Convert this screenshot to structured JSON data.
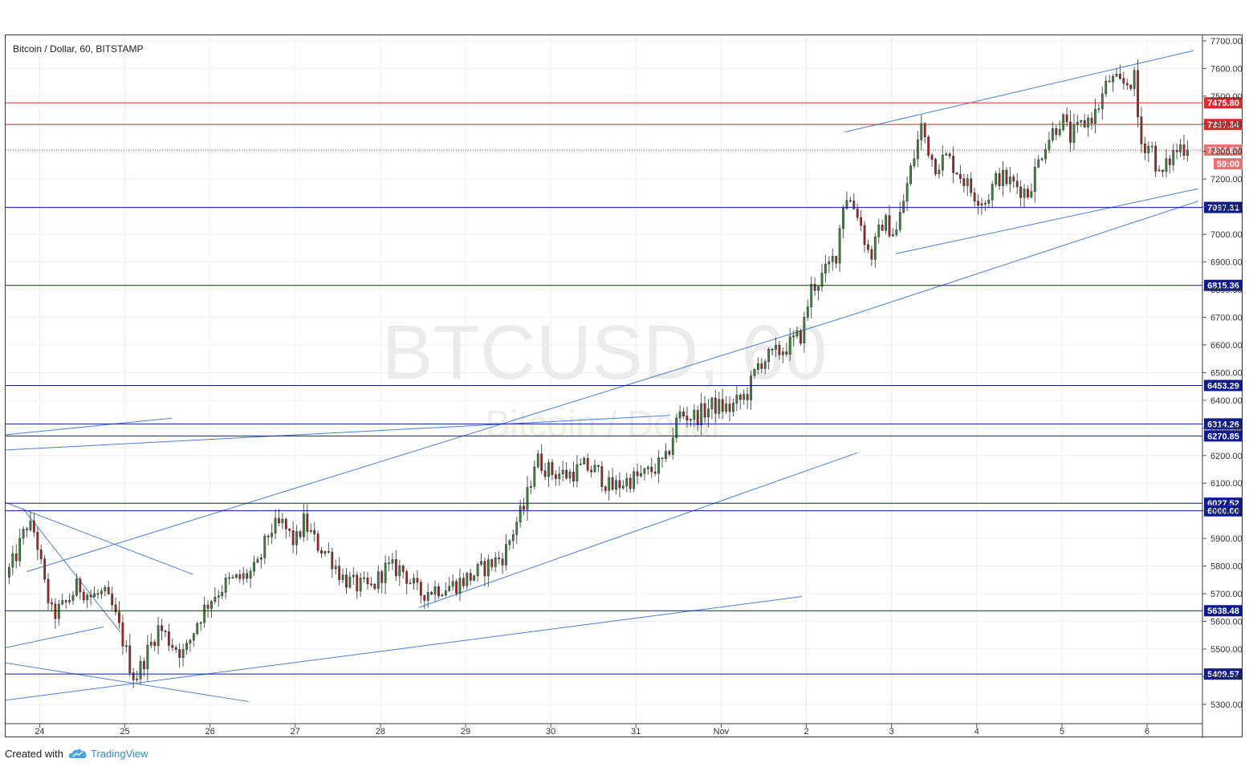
{
  "chart_data": {
    "type": "candlestick",
    "title": "Bitcoin / Dollar, 60, BITSTAMP",
    "watermark": {
      "symbol": "BTCUSD, 60",
      "name": "Bitcoin / Dollar"
    },
    "ylim": [
      5230,
      7720
    ],
    "y_ticks": [
      5300,
      5400,
      5500,
      5600,
      5700,
      5800,
      5900,
      6000,
      6100,
      6200,
      6300,
      6400,
      6500,
      6600,
      6700,
      6800,
      6900,
      7000,
      7100,
      7200,
      7300,
      7400,
      7500,
      7600,
      7700
    ],
    "x_ticks": [
      {
        "label": "24",
        "t": 1.0
      },
      {
        "label": "25",
        "t": 2.0
      },
      {
        "label": "26",
        "t": 3.0
      },
      {
        "label": "27",
        "t": 4.0
      },
      {
        "label": "28",
        "t": 5.0
      },
      {
        "label": "29",
        "t": 6.0
      },
      {
        "label": "30",
        "t": 7.0
      },
      {
        "label": "31",
        "t": 8.0
      },
      {
        "label": "Nov",
        "t": 9.0
      },
      {
        "label": "2",
        "t": 10.0
      },
      {
        "label": "3",
        "t": 11.0
      },
      {
        "label": "4",
        "t": 12.0
      },
      {
        "label": "5",
        "t": 13.0
      },
      {
        "label": "6",
        "t": 14.0
      }
    ],
    "xlim": [
      0.6,
      14.65
    ],
    "current_price": {
      "value": 7304.63,
      "label": "7304.63",
      "countdown": "59:00"
    },
    "support_resistance_lines": [
      {
        "value": 7475.8,
        "label": "7475.80",
        "color": "#d32f2f"
      },
      {
        "value": 7397.34,
        "label": "7397.34",
        "color": "#d32f2f"
      },
      {
        "value": 7097.31,
        "label": "7097.31",
        "color": "#0d1a8c"
      },
      {
        "value": 6815.36,
        "label": "6815.36",
        "color": "#0d1a8c"
      },
      {
        "value": 6453.29,
        "label": "6453.29",
        "color": "#0d1a8c"
      },
      {
        "value": 6314.26,
        "label": "6314.26",
        "color": "#0d1a8c"
      },
      {
        "value": 6270.85,
        "label": "6270.85",
        "color": "#0d1a8c"
      },
      {
        "value": 6027.52,
        "label": "6027.52",
        "color": "#0d1a8c"
      },
      {
        "value": 6000.0,
        "label": "6000.00",
        "color": "#0d1a8c"
      },
      {
        "value": 5638.48,
        "label": "5638.48",
        "color": "#0d1a8c"
      },
      {
        "value": 5409.57,
        "label": "5409.57",
        "color": "#0d1a8c"
      }
    ],
    "trend_lines": [
      {
        "t1": 0.6,
        "p1": 6275,
        "t2": 2.55,
        "p2": 6335
      },
      {
        "t1": 0.6,
        "p1": 6220,
        "t2": 8.4,
        "p2": 6345
      },
      {
        "t1": 0.85,
        "p1": 5780,
        "t2": 10.45,
        "p2": 6700
      },
      {
        "t1": 10.45,
        "p1": 6700,
        "t2": 14.6,
        "p2": 7120
      },
      {
        "t1": 10.45,
        "p1": 7370,
        "t2": 14.55,
        "p2": 7665
      },
      {
        "t1": 11.05,
        "p1": 6930,
        "t2": 14.6,
        "p2": 7165
      },
      {
        "t1": 0.6,
        "p1": 5505,
        "t2": 1.75,
        "p2": 5580
      },
      {
        "t1": 0.6,
        "p1": 6030,
        "t2": 2.8,
        "p2": 5770
      },
      {
        "t1": 0.8,
        "p1": 6010,
        "t2": 1.95,
        "p2": 5560
      },
      {
        "t1": 0.6,
        "p1": 5450,
        "t2": 3.45,
        "p2": 5310
      },
      {
        "t1": 0.6,
        "p1": 5315,
        "t2": 9.95,
        "p2": 5690
      },
      {
        "t1": 5.45,
        "p1": 5650,
        "t2": 10.6,
        "p2": 6210
      }
    ],
    "close_path": [
      [
        0.6,
        5760
      ],
      [
        0.7,
        5820
      ],
      [
        0.85,
        5950
      ],
      [
        0.95,
        5920
      ],
      [
        1.05,
        5740
      ],
      [
        1.15,
        5620
      ],
      [
        1.3,
        5660
      ],
      [
        1.45,
        5730
      ],
      [
        1.6,
        5690
      ],
      [
        1.75,
        5700
      ],
      [
        1.85,
        5650
      ],
      [
        1.95,
        5560
      ],
      [
        2.05,
        5450
      ],
      [
        2.12,
        5390
      ],
      [
        2.25,
        5480
      ],
      [
        2.4,
        5580
      ],
      [
        2.55,
        5520
      ],
      [
        2.7,
        5480
      ],
      [
        2.85,
        5600
      ],
      [
        3.0,
        5680
      ],
      [
        3.2,
        5740
      ],
      [
        3.4,
        5760
      ],
      [
        3.55,
        5790
      ],
      [
        3.7,
        5930
      ],
      [
        3.85,
        5950
      ],
      [
        4.0,
        5880
      ],
      [
        4.1,
        5960
      ],
      [
        4.25,
        5880
      ],
      [
        4.4,
        5840
      ],
      [
        4.55,
        5760
      ],
      [
        4.7,
        5730
      ],
      [
        4.9,
        5720
      ],
      [
        5.05,
        5790
      ],
      [
        5.25,
        5790
      ],
      [
        5.45,
        5700
      ],
      [
        5.65,
        5720
      ],
      [
        5.85,
        5730
      ],
      [
        6.05,
        5760
      ],
      [
        6.25,
        5800
      ],
      [
        6.45,
        5840
      ],
      [
        6.6,
        5960
      ],
      [
        6.7,
        6020
      ],
      [
        6.82,
        6190
      ],
      [
        7.0,
        6140
      ],
      [
        7.2,
        6130
      ],
      [
        7.4,
        6160
      ],
      [
        7.55,
        6140
      ],
      [
        7.7,
        6080
      ],
      [
        7.9,
        6110
      ],
      [
        8.1,
        6130
      ],
      [
        8.35,
        6180
      ],
      [
        8.5,
        6350
      ],
      [
        8.7,
        6340
      ],
      [
        8.9,
        6380
      ],
      [
        9.1,
        6370
      ],
      [
        9.3,
        6420
      ],
      [
        9.45,
        6540
      ],
      [
        9.6,
        6560
      ],
      [
        9.8,
        6600
      ],
      [
        9.95,
        6640
      ],
      [
        10.05,
        6800
      ],
      [
        10.2,
        6850
      ],
      [
        10.35,
        6930
      ],
      [
        10.45,
        7150
      ],
      [
        10.6,
        7080
      ],
      [
        10.75,
        6910
      ],
      [
        10.9,
        7050
      ],
      [
        11.05,
        7000
      ],
      [
        11.2,
        7200
      ],
      [
        11.35,
        7390
      ],
      [
        11.5,
        7250
      ],
      [
        11.65,
        7280
      ],
      [
        11.8,
        7220
      ],
      [
        11.95,
        7150
      ],
      [
        12.1,
        7120
      ],
      [
        12.25,
        7210
      ],
      [
        12.45,
        7180
      ],
      [
        12.6,
        7150
      ],
      [
        12.8,
        7330
      ],
      [
        13.0,
        7420
      ],
      [
        13.1,
        7350
      ],
      [
        13.25,
        7400
      ],
      [
        13.4,
        7440
      ],
      [
        13.55,
        7560
      ],
      [
        13.7,
        7540
      ],
      [
        13.85,
        7560
      ],
      [
        13.92,
        7330
      ],
      [
        14.05,
        7320
      ],
      [
        14.15,
        7200
      ],
      [
        14.3,
        7290
      ],
      [
        14.4,
        7320
      ],
      [
        14.5,
        7304.63
      ]
    ]
  },
  "footer": {
    "created_with": "Created with",
    "brand": "TradingView"
  }
}
